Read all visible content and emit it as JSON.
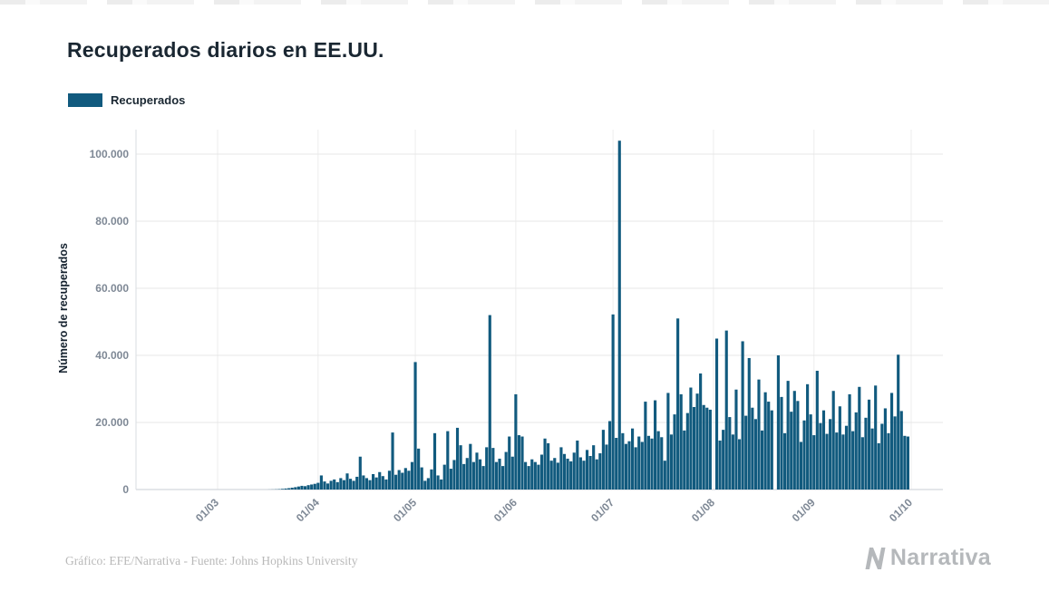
{
  "title": "Recuperados diarios en EE.UU.",
  "legend": {
    "label": "Recuperados",
    "color": "#115a7e"
  },
  "footer": {
    "credit": "Gráfico: EFE/Narrativa - Fuente: Johns Hopkins University",
    "brand": "Narrativa"
  },
  "chart_data": {
    "type": "bar",
    "title": "Recuperados diarios en EE.UU.",
    "xlabel": "",
    "ylabel": "Número de recuperados",
    "x_format": "dd/mm, daily values from 01/03 (Mar 1) to 30/09 (Sep 30)",
    "x_tick_labels": [
      "01/03",
      "01/04",
      "01/05",
      "01/06",
      "01/07",
      "01/08",
      "01/09",
      "01/10"
    ],
    "x_tick_day_offsets": [
      0,
      31,
      61,
      92,
      122,
      153,
      184,
      214
    ],
    "y_ticks": [
      0,
      20000,
      40000,
      60000,
      80000,
      100000
    ],
    "y_tick_labels": [
      "0",
      "20.000",
      "40.000",
      "60.000",
      "80.000",
      "100.000"
    ],
    "ylim": [
      0,
      110000
    ],
    "grid": true,
    "legend_position": "top-left",
    "bar_color": "#115a7e",
    "series": [
      {
        "name": "Recuperados",
        "values": [
          0,
          0,
          0,
          0,
          0,
          0,
          0,
          0,
          0,
          0,
          0,
          0,
          0,
          0,
          0,
          0,
          20,
          40,
          70,
          120,
          200,
          300,
          400,
          550,
          700,
          900,
          1100,
          1000,
          1300,
          1500,
          1700,
          2000,
          4200,
          2400,
          1800,
          2600,
          3000,
          2200,
          3400,
          2800,
          4800,
          3200,
          2600,
          3800,
          9800,
          4200,
          3400,
          2800,
          4600,
          3600,
          5200,
          4000,
          3000,
          5600,
          17000,
          4400,
          5800,
          5000,
          6400,
          5600,
          8200,
          38000,
          12200,
          6600,
          2600,
          3400,
          6000,
          16800,
          4200,
          3000,
          7400,
          17400,
          6200,
          8800,
          18400,
          13200,
          7600,
          9400,
          13600,
          8200,
          11000,
          9000,
          7000,
          12600,
          52000,
          12400,
          8200,
          9200,
          7000,
          11200,
          15800,
          9800,
          28400,
          16200,
          15800,
          8200,
          7000,
          9000,
          8200,
          7400,
          10400,
          15200,
          13800,
          8600,
          9400,
          8000,
          12600,
          10600,
          9200,
          8400,
          11000,
          14600,
          9600,
          8600,
          11800,
          10000,
          13200,
          9000,
          10800,
          17800,
          13400,
          20400,
          52200,
          15400,
          104000,
          16800,
          13600,
          14400,
          18200,
          12600,
          15800,
          14200,
          26200,
          16000,
          15200,
          26600,
          17400,
          15600,
          8600,
          28800,
          16400,
          22400,
          51000,
          28400,
          17600,
          22800,
          30400,
          24600,
          28600,
          34600,
          25200,
          24400,
          23800,
          0,
          45000,
          14600,
          17800,
          47400,
          21600,
          16400,
          29800,
          15000,
          44200,
          22000,
          39200,
          24400,
          21000,
          32800,
          17600,
          29000,
          26200,
          23600,
          0,
          40000,
          27600,
          16800,
          32400,
          23200,
          29400,
          26400,
          14200,
          20600,
          31400,
          22400,
          16200,
          35400,
          19800,
          23600,
          16600,
          21000,
          29400,
          17000,
          24800,
          16400,
          19000,
          28400,
          17400,
          23000,
          30600,
          15600,
          21400,
          26800,
          18200,
          31000,
          13800,
          19600,
          24200,
          16800,
          28800,
          21800,
          40200,
          23400,
          16000,
          15800
        ]
      }
    ]
  }
}
